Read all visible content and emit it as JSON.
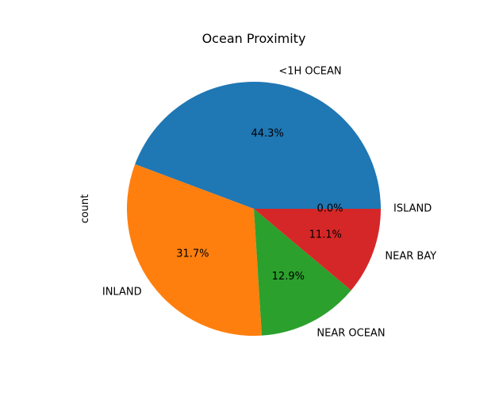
{
  "chart_data": {
    "type": "pie",
    "title": "Ocean Proximity",
    "ylabel": "count",
    "start_angle_deg": 0,
    "direction": "counterclockwise",
    "slices": [
      {
        "label": "<1H OCEAN",
        "value": 44.3,
        "pct_label": "44.3%",
        "color": "#1f77b4"
      },
      {
        "label": "INLAND",
        "value": 31.7,
        "pct_label": "31.7%",
        "color": "#ff7f0e"
      },
      {
        "label": "NEAR OCEAN",
        "value": 12.9,
        "pct_label": "12.9%",
        "color": "#2ca02c"
      },
      {
        "label": "NEAR BAY",
        "value": 11.1,
        "pct_label": "11.1%",
        "color": "#d62728"
      },
      {
        "label": "ISLAND",
        "value": 0.0,
        "pct_label": "0.0%",
        "color": "#9467bd"
      }
    ]
  }
}
